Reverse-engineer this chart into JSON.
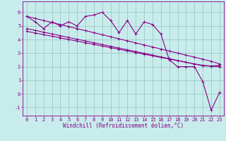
{
  "xlabel": "Windchill (Refroidissement éolien,°C)",
  "bg_color": "#c8ecec",
  "grid_color": "#a0c8c8",
  "line_color": "#880088",
  "xlim": [
    -0.5,
    23.5
  ],
  "ylim": [
    -1.6,
    6.8
  ],
  "xticks": [
    0,
    1,
    2,
    3,
    4,
    5,
    6,
    7,
    8,
    9,
    10,
    11,
    12,
    13,
    14,
    15,
    16,
    17,
    18,
    19,
    20,
    21,
    22,
    23
  ],
  "yticks": [
    -1,
    0,
    1,
    2,
    3,
    4,
    5,
    6
  ],
  "series1_x": [
    0,
    1,
    2,
    3,
    4,
    5,
    6,
    7,
    8,
    9,
    10,
    11,
    12,
    13,
    14,
    15,
    16,
    17,
    18,
    19,
    20,
    21,
    22,
    23
  ],
  "series1_y": [
    5.7,
    5.3,
    4.8,
    5.3,
    5.0,
    5.3,
    5.0,
    5.7,
    5.8,
    6.0,
    5.4,
    4.5,
    5.4,
    4.4,
    5.3,
    5.1,
    4.4,
    2.5,
    2.0,
    2.0,
    2.0,
    0.9,
    -1.2,
    0.1
  ],
  "series2_x": [
    0,
    1,
    2,
    3,
    4,
    5,
    6,
    7,
    8,
    9,
    10,
    11,
    12,
    13,
    14,
    15,
    16,
    17,
    18,
    19,
    20,
    21,
    22,
    23
  ],
  "series2_y": [
    5.7,
    5.55,
    5.4,
    5.25,
    5.1,
    4.95,
    4.8,
    4.65,
    4.5,
    4.35,
    4.2,
    4.05,
    3.9,
    3.75,
    3.6,
    3.45,
    3.3,
    3.15,
    3.0,
    2.85,
    2.7,
    2.55,
    2.4,
    2.2
  ],
  "series3_x": [
    0,
    1,
    2,
    3,
    4,
    5,
    6,
    7,
    8,
    9,
    10,
    11,
    12,
    13,
    14,
    15,
    16,
    17,
    18,
    19,
    20,
    21,
    22,
    23
  ],
  "series3_y": [
    4.8,
    4.67,
    4.54,
    4.41,
    4.28,
    4.15,
    4.02,
    3.89,
    3.76,
    3.63,
    3.5,
    3.37,
    3.24,
    3.11,
    2.98,
    2.85,
    2.72,
    2.59,
    2.46,
    2.33,
    2.2,
    2.07,
    2.03,
    2.0
  ],
  "series4_x": [
    0,
    1,
    2,
    3,
    4,
    5,
    6,
    7,
    8,
    9,
    10,
    11,
    12,
    13,
    14,
    15,
    16,
    17,
    18,
    19,
    20,
    21,
    22,
    23
  ],
  "series4_y": [
    4.6,
    4.48,
    4.36,
    4.24,
    4.12,
    4.0,
    3.88,
    3.76,
    3.64,
    3.52,
    3.4,
    3.28,
    3.16,
    3.04,
    2.92,
    2.8,
    2.68,
    2.56,
    2.44,
    2.32,
    2.2,
    2.1,
    2.05,
    2.1
  ],
  "marker_size": 2.5,
  "line_width": 0.8,
  "tick_fontsize": 5.0,
  "xlabel_fontsize": 5.5
}
